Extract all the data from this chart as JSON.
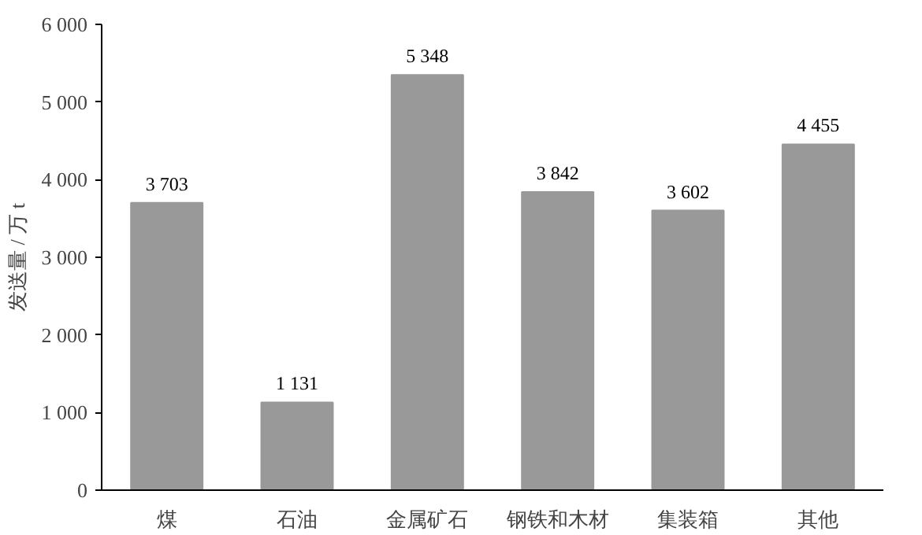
{
  "chart_data": {
    "type": "bar",
    "ylabel": "发送量 / 万 t",
    "categories": [
      "煤",
      "石油",
      "金属矿石",
      "钢铁和木材",
      "集装箱",
      "其他"
    ],
    "values": [
      3703,
      1131,
      5348,
      3842,
      3602,
      4455
    ],
    "value_labels": [
      "3 703",
      "1 131",
      "5 348",
      "3 842",
      "3 602",
      "4 455"
    ],
    "color": "#999999",
    "ylim": [
      0,
      6000
    ],
    "yticks": [
      0,
      {
        "value": 1000,
        "label": "1 000"
      },
      {
        "value": 2000,
        "label": "2 000"
      },
      {
        "value": 3000,
        "label": "3 000"
      },
      {
        "value": 4000,
        "label": "4 000"
      },
      {
        "value": 5000,
        "label": "5 000"
      },
      {
        "value": 6000,
        "label": "6 000"
      }
    ],
    "grid": false
  }
}
